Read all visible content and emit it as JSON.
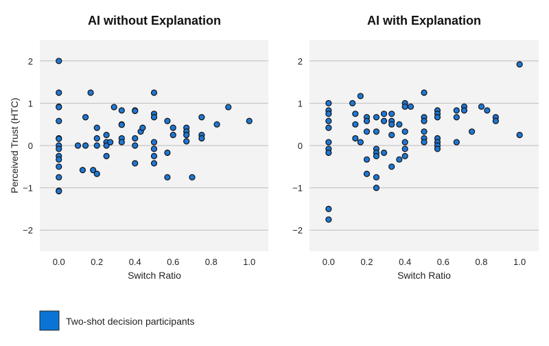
{
  "chart_data": [
    {
      "type": "scatter",
      "title": "AI without Explanation",
      "xlabel": "Switch Ratio",
      "ylabel": "Perceived Trust (HTC)",
      "xlim": [
        -0.1,
        1.1
      ],
      "ylim": [
        -2.5,
        2.5
      ],
      "xticks": [
        0.0,
        0.2,
        0.4,
        0.6,
        0.8,
        1.0
      ],
      "xtick_labels": [
        "0.0",
        "0.2",
        "0.4",
        "0.6",
        "0.8",
        "1.0"
      ],
      "yticks": [
        -2,
        -1,
        0,
        1,
        2
      ],
      "ytick_labels": [
        "−2",
        "−1",
        "0",
        "1",
        "2"
      ],
      "grid": "horizontal",
      "series": [
        {
          "name": "Two-shot decision participants",
          "points": [
            [
              0.0,
              2.0
            ],
            [
              0.0,
              1.25
            ],
            [
              0.0,
              0.92
            ],
            [
              0.0,
              0.91
            ],
            [
              0.0,
              0.58
            ],
            [
              0.0,
              0.17
            ],
            [
              0.0,
              0.16
            ],
            [
              0.0,
              0.0
            ],
            [
              0.0,
              -0.08
            ],
            [
              0.0,
              -0.25
            ],
            [
              0.0,
              -0.33
            ],
            [
              0.0,
              -0.5
            ],
            [
              0.0,
              -0.75
            ],
            [
              0.0,
              -1.07
            ],
            [
              0.0,
              -1.08
            ],
            [
              0.1,
              0.0
            ],
            [
              0.125,
              -0.58
            ],
            [
              0.14,
              0.0
            ],
            [
              0.14,
              0.67
            ],
            [
              0.167,
              1.25
            ],
            [
              0.18,
              -0.58
            ],
            [
              0.2,
              0.42
            ],
            [
              0.2,
              0.17
            ],
            [
              0.2,
              0.0
            ],
            [
              0.2,
              -0.67
            ],
            [
              0.25,
              0.25
            ],
            [
              0.25,
              0.08
            ],
            [
              0.25,
              0.0
            ],
            [
              0.25,
              -0.25
            ],
            [
              0.27,
              0.08
            ],
            [
              0.29,
              0.91
            ],
            [
              0.33,
              0.83
            ],
            [
              0.33,
              0.5
            ],
            [
              0.33,
              0.49
            ],
            [
              0.33,
              0.17
            ],
            [
              0.33,
              0.08
            ],
            [
              0.4,
              0.83
            ],
            [
              0.4,
              0.82
            ],
            [
              0.4,
              0.17
            ],
            [
              0.4,
              0.0
            ],
            [
              0.4,
              -0.42
            ],
            [
              0.43,
              0.33
            ],
            [
              0.44,
              0.42
            ],
            [
              0.5,
              1.25
            ],
            [
              0.5,
              0.75
            ],
            [
              0.5,
              0.67
            ],
            [
              0.5,
              0.08
            ],
            [
              0.5,
              -0.08
            ],
            [
              0.5,
              -0.25
            ],
            [
              0.5,
              -0.42
            ],
            [
              0.57,
              0.58
            ],
            [
              0.57,
              -0.17
            ],
            [
              0.57,
              -0.75
            ],
            [
              0.6,
              0.42
            ],
            [
              0.6,
              0.25
            ],
            [
              0.67,
              0.42
            ],
            [
              0.67,
              0.33
            ],
            [
              0.67,
              0.25
            ],
            [
              0.67,
              0.1
            ],
            [
              0.7,
              -0.75
            ],
            [
              0.75,
              0.67
            ],
            [
              0.75,
              0.25
            ],
            [
              0.75,
              0.17
            ],
            [
              0.83,
              0.5
            ],
            [
              0.89,
              0.91
            ],
            [
              1.0,
              0.58
            ]
          ]
        }
      ]
    },
    {
      "type": "scatter",
      "title": "AI with Explanation",
      "xlabel": "Switch Ratio",
      "ylabel": "",
      "xlim": [
        -0.1,
        1.1
      ],
      "ylim": [
        -2.5,
        2.5
      ],
      "xticks": [
        0.0,
        0.2,
        0.4,
        0.6,
        0.8,
        1.0
      ],
      "xtick_labels": [
        "0.0",
        "0.2",
        "0.4",
        "0.6",
        "0.8",
        "1.0"
      ],
      "yticks": [
        -2,
        -1,
        0,
        1,
        2
      ],
      "ytick_labels": [
        "−2",
        "−1",
        "0",
        "1",
        "2"
      ],
      "grid": "horizontal",
      "series": [
        {
          "name": "Two-shot decision participants",
          "points": [
            [
              0.0,
              1.0
            ],
            [
              0.0,
              0.83
            ],
            [
              0.0,
              0.75
            ],
            [
              0.0,
              0.58
            ],
            [
              0.0,
              0.42
            ],
            [
              0.0,
              0.08
            ],
            [
              0.0,
              -0.08
            ],
            [
              0.0,
              -0.17
            ],
            [
              0.0,
              -1.5
            ],
            [
              0.0,
              -1.75
            ],
            [
              0.125,
              1.0
            ],
            [
              0.14,
              0.75
            ],
            [
              0.14,
              0.5
            ],
            [
              0.14,
              0.17
            ],
            [
              0.167,
              1.17
            ],
            [
              0.167,
              0.08
            ],
            [
              0.2,
              0.67
            ],
            [
              0.2,
              0.58
            ],
            [
              0.2,
              0.33
            ],
            [
              0.2,
              -0.33
            ],
            [
              0.2,
              -0.67
            ],
            [
              0.25,
              0.67
            ],
            [
              0.25,
              0.33
            ],
            [
              0.25,
              -0.08
            ],
            [
              0.25,
              -0.17
            ],
            [
              0.25,
              -0.25
            ],
            [
              0.25,
              -0.75
            ],
            [
              0.25,
              -1.0
            ],
            [
              0.29,
              0.75
            ],
            [
              0.29,
              0.58
            ],
            [
              0.29,
              -0.17
            ],
            [
              0.33,
              0.75
            ],
            [
              0.33,
              0.58
            ],
            [
              0.33,
              0.5
            ],
            [
              0.33,
              0.25
            ],
            [
              0.33,
              -0.5
            ],
            [
              0.37,
              0.5
            ],
            [
              0.37,
              -0.33
            ],
            [
              0.4,
              1.0
            ],
            [
              0.4,
              0.92
            ],
            [
              0.4,
              0.33
            ],
            [
              0.4,
              0.08
            ],
            [
              0.4,
              -0.08
            ],
            [
              0.4,
              -0.25
            ],
            [
              0.43,
              0.92
            ],
            [
              0.5,
              1.25
            ],
            [
              0.5,
              0.67
            ],
            [
              0.5,
              0.58
            ],
            [
              0.5,
              0.33
            ],
            [
              0.5,
              0.17
            ],
            [
              0.5,
              0.08
            ],
            [
              0.57,
              0.83
            ],
            [
              0.57,
              0.75
            ],
            [
              0.57,
              0.67
            ],
            [
              0.57,
              0.17
            ],
            [
              0.57,
              0.08
            ],
            [
              0.57,
              0.0
            ],
            [
              0.57,
              -0.08
            ],
            [
              0.67,
              0.83
            ],
            [
              0.67,
              0.67
            ],
            [
              0.67,
              0.08
            ],
            [
              0.71,
              0.92
            ],
            [
              0.71,
              0.83
            ],
            [
              0.75,
              0.33
            ],
            [
              0.8,
              0.92
            ],
            [
              0.83,
              0.83
            ],
            [
              0.875,
              0.67
            ],
            [
              0.875,
              0.58
            ],
            [
              1.0,
              1.92
            ],
            [
              1.0,
              0.25
            ]
          ]
        }
      ]
    }
  ],
  "legend": {
    "label": "Two-shot decision participants",
    "placement": "bottom-left",
    "color": "#0a74d6"
  },
  "colors": {
    "marker_fill": "#1f77d4",
    "marker_edge": "#111111",
    "plot_background": "#f3f3f3",
    "grid": "#bdbdbd"
  }
}
